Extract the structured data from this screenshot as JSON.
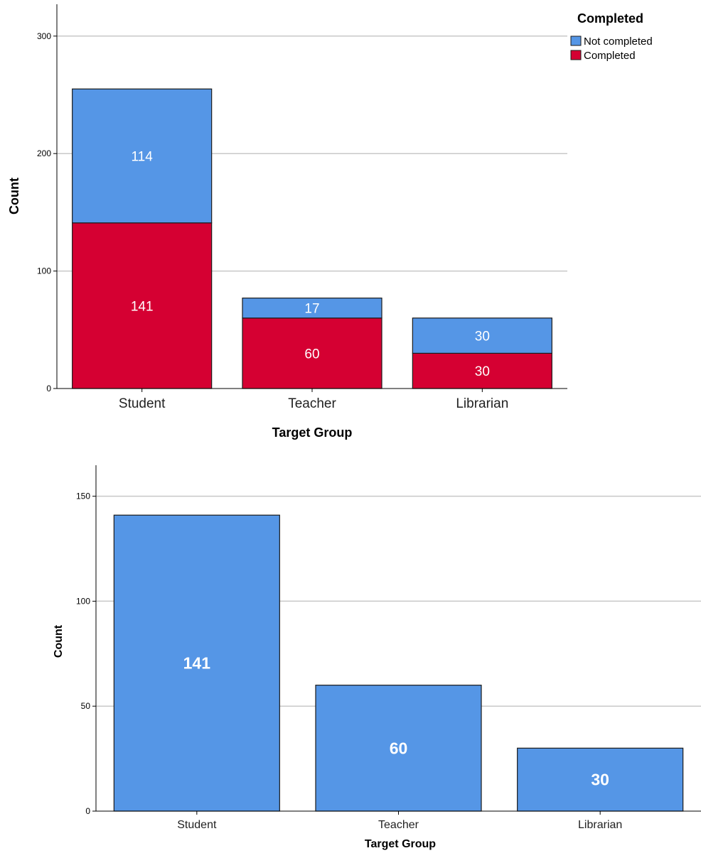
{
  "chart_data": [
    {
      "type": "bar",
      "stacked": true,
      "categories": [
        "Student",
        "Teacher",
        "Librarian"
      ],
      "series": [
        {
          "name": "Completed",
          "values": [
            141,
            60,
            30
          ],
          "color": "#d50032"
        },
        {
          "name": "Not completed",
          "values": [
            114,
            17,
            30
          ],
          "color": "#5596e6"
        }
      ],
      "xlabel": "Target Group",
      "ylabel": "Count",
      "ylim": [
        0,
        315
      ],
      "yticks": [
        0,
        100,
        200,
        300
      ],
      "grid": true,
      "legend": {
        "title": "Completed",
        "placement": "top-right",
        "entries": [
          "Not completed",
          "Completed"
        ]
      }
    },
    {
      "type": "bar",
      "categories": [
        "Student",
        "Teacher",
        "Librarian"
      ],
      "values": [
        141,
        60,
        30
      ],
      "color": "#5596e6",
      "xlabel": "Target Group",
      "ylabel": "Count",
      "ylim": [
        0,
        158
      ],
      "yticks": [
        0,
        50,
        100,
        150
      ],
      "grid": true
    }
  ]
}
